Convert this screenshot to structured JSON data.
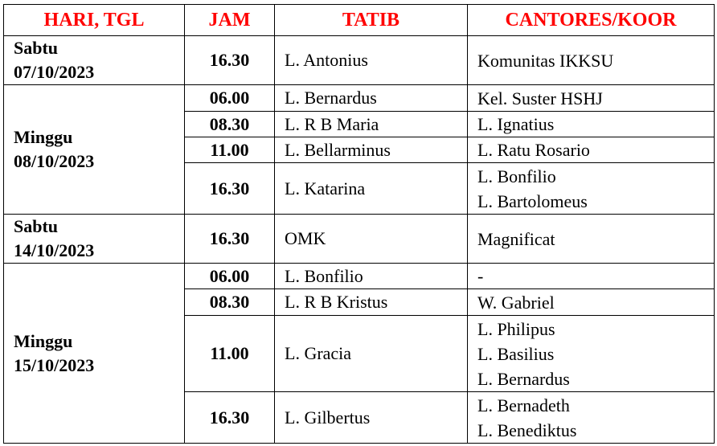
{
  "header": {
    "hari": "HARI, TGL",
    "jam": "JAM",
    "tatib": "TATIB",
    "cantores": "CANTORES/KOOR"
  },
  "colors": {
    "header_text": "#ff0000"
  },
  "groups": [
    {
      "day": "Sabtu",
      "date": "07/10/2023",
      "rows": [
        {
          "time": "16.30",
          "tatib": "L. Antonius",
          "koor": [
            "Komunitas IKKSU"
          ]
        }
      ]
    },
    {
      "day": "Minggu",
      "date": "08/10/2023",
      "rows": [
        {
          "time": "06.00",
          "tatib": "L. Bernardus",
          "koor": [
            "Kel. Suster HSHJ"
          ]
        },
        {
          "time": "08.30",
          "tatib": "L. R B Maria",
          "koor": [
            "L. Ignatius"
          ]
        },
        {
          "time": "11.00",
          "tatib": "L. Bellarminus",
          "koor": [
            "L. Ratu Rosario"
          ]
        },
        {
          "time": "16.30",
          "tatib": "L. Katarina",
          "koor": [
            "L. Bonfilio",
            "L. Bartolomeus"
          ]
        }
      ]
    },
    {
      "day": "Sabtu",
      "date": "14/10/2023",
      "rows": [
        {
          "time": "16.30",
          "tatib": "OMK",
          "koor": [
            "Magnificat"
          ]
        }
      ]
    },
    {
      "day": "Minggu",
      "date": "15/10/2023",
      "rows": [
        {
          "time": "06.00",
          "tatib": "L. Bonfilio",
          "koor": [
            "-"
          ]
        },
        {
          "time": "08.30",
          "tatib": "L. R B Kristus",
          "koor": [
            "W. Gabriel"
          ]
        },
        {
          "time": "11.00",
          "tatib": "L. Gracia",
          "koor": [
            "L. Philipus",
            "L. Basilius",
            "L. Bernardus"
          ]
        },
        {
          "time": "16.30",
          "tatib": "L. Gilbertus",
          "koor": [
            "L. Bernadeth",
            "L. Benediktus"
          ]
        }
      ]
    }
  ]
}
